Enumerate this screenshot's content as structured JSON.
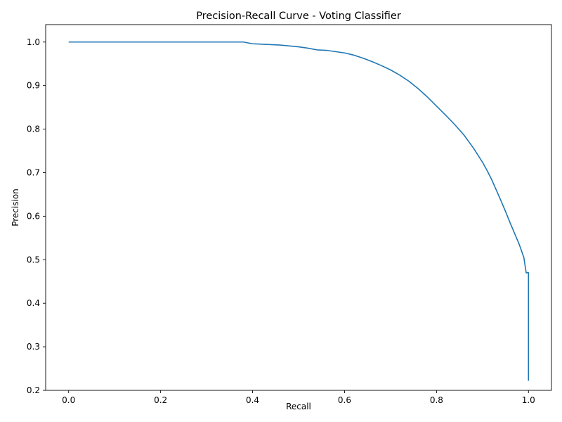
{
  "chart_data": {
    "type": "line",
    "title": "Precision-Recall Curve - Voting Classifier",
    "xlabel": "Recall",
    "ylabel": "Precision",
    "xlim": [
      -0.05,
      1.05
    ],
    "ylim": [
      0.2,
      1.04
    ],
    "xticks": [
      0.0,
      0.2,
      0.4,
      0.6,
      0.8,
      1.0
    ],
    "xtick_labels": [
      "0.0",
      "0.2",
      "0.4",
      "0.6",
      "0.8",
      "1.0"
    ],
    "yticks": [
      0.2,
      0.3,
      0.4,
      0.5,
      0.6,
      0.7,
      0.8,
      0.9,
      1.0
    ],
    "ytick_labels": [
      "0.2",
      "0.3",
      "0.4",
      "0.5",
      "0.6",
      "0.7",
      "0.8",
      "0.9",
      "1.0"
    ],
    "grid": false,
    "legend": "none",
    "series": [
      {
        "color": "#1f77b4",
        "x": [
          0.0,
          0.05,
          0.1,
          0.2,
          0.3,
          0.38,
          0.39,
          0.4,
          0.42,
          0.44,
          0.46,
          0.48,
          0.5,
          0.52,
          0.54,
          0.56,
          0.58,
          0.6,
          0.62,
          0.64,
          0.66,
          0.68,
          0.7,
          0.72,
          0.74,
          0.76,
          0.78,
          0.8,
          0.82,
          0.84,
          0.86,
          0.88,
          0.9,
          0.91,
          0.92,
          0.93,
          0.94,
          0.95,
          0.96,
          0.97,
          0.98,
          0.99,
          0.995,
          1.0,
          1.0
        ],
        "y": [
          1.0,
          1.0,
          1.0,
          1.0,
          1.0,
          1.0,
          0.998,
          0.996,
          0.995,
          0.994,
          0.993,
          0.991,
          0.989,
          0.986,
          0.982,
          0.981,
          0.978,
          0.975,
          0.97,
          0.963,
          0.955,
          0.946,
          0.936,
          0.924,
          0.91,
          0.893,
          0.874,
          0.853,
          0.832,
          0.81,
          0.786,
          0.757,
          0.724,
          0.705,
          0.684,
          0.66,
          0.636,
          0.611,
          0.585,
          0.56,
          0.535,
          0.505,
          0.47,
          0.47,
          0.222
        ]
      }
    ]
  }
}
